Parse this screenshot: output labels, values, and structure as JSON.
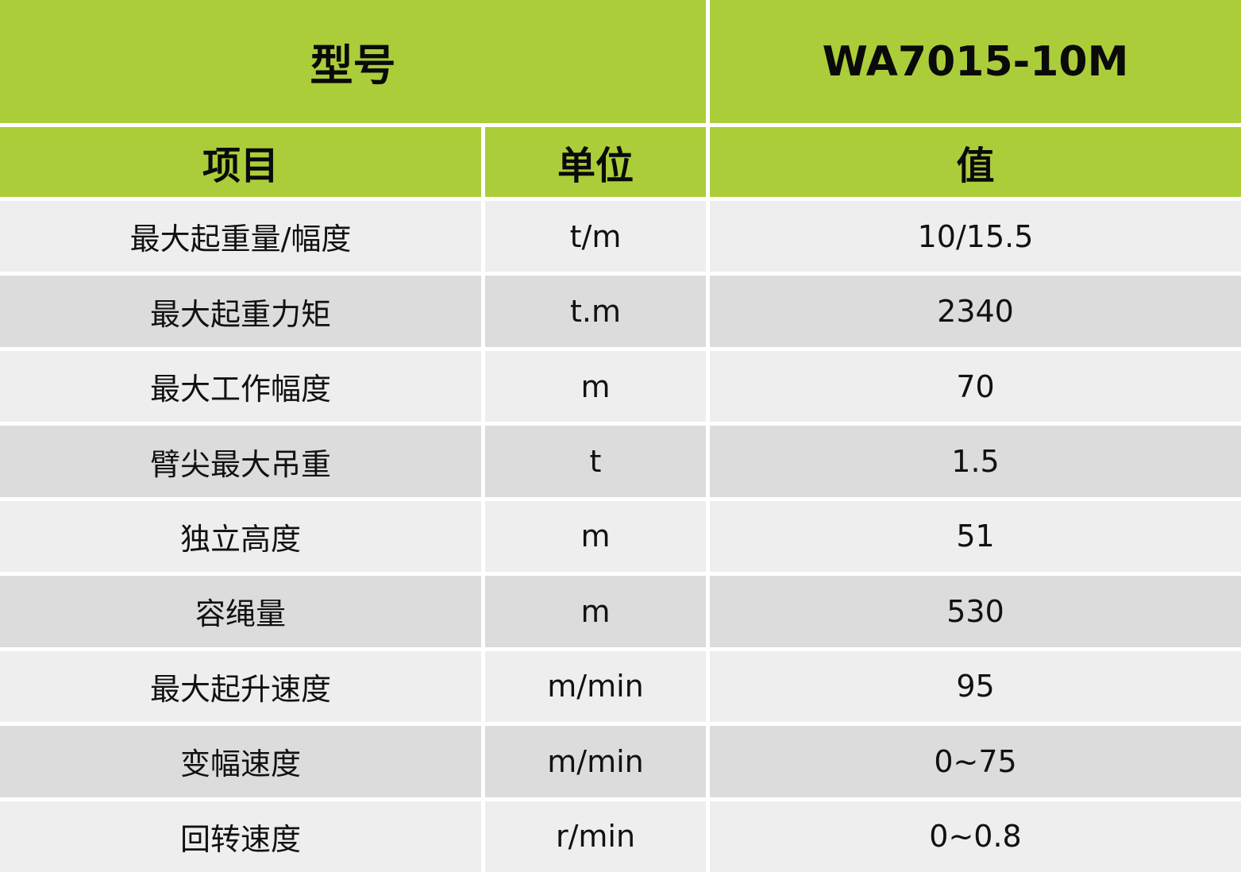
{
  "header": {
    "model_label": "型号",
    "model_value": "WA7015-10M",
    "col_item": "项目",
    "col_unit": "单位",
    "col_value": "值"
  },
  "colors": {
    "header_green": "#abcd3a",
    "row_light": "#eeeeee",
    "row_dark": "#dcdcdc"
  },
  "rows": [
    {
      "item": "最大起重量/幅度",
      "unit": "t/m",
      "value": "10/15.5"
    },
    {
      "item": "最大起重力矩",
      "unit": "t.m",
      "value": "2340"
    },
    {
      "item": "最大工作幅度",
      "unit": "m",
      "value": "70"
    },
    {
      "item": "臂尖最大吊重",
      "unit": "t",
      "value": "1.5"
    },
    {
      "item": "独立高度",
      "unit": "m",
      "value": "51"
    },
    {
      "item": "容绳量",
      "unit": "m",
      "value": "530"
    },
    {
      "item": "最大起升速度",
      "unit": "m/min",
      "value": "95"
    },
    {
      "item": "变幅速度",
      "unit": "m/min",
      "value": "0~75"
    },
    {
      "item": "回转速度",
      "unit": "r/min",
      "value": "0~0.8"
    }
  ]
}
